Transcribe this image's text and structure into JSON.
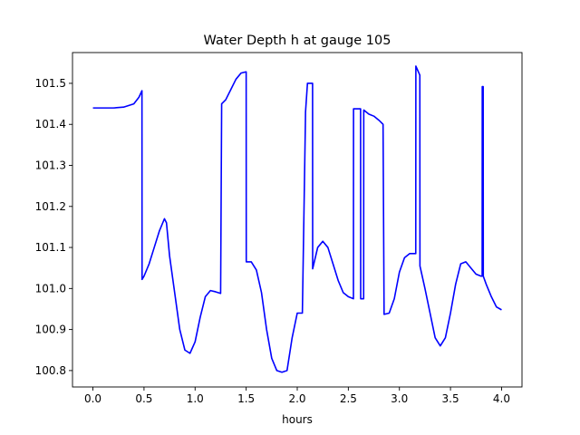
{
  "chart_data": {
    "type": "line",
    "title": "Water Depth h at gauge 105",
    "xlabel": "hours",
    "ylabel": "",
    "xlim": [
      -0.2,
      4.2
    ],
    "ylim": [
      100.76,
      101.575
    ],
    "x_ticks": [
      0.0,
      0.5,
      1.0,
      1.5,
      2.0,
      2.5,
      3.0,
      3.5,
      4.0
    ],
    "x_tick_labels": [
      "0.0",
      "0.5",
      "1.0",
      "1.5",
      "2.0",
      "2.5",
      "3.0",
      "3.5",
      "4.0"
    ],
    "y_ticks": [
      100.8,
      100.9,
      101.0,
      101.1,
      101.2,
      101.3,
      101.4,
      101.5
    ],
    "y_tick_labels": [
      "100.8",
      "100.9",
      "101.0",
      "101.1",
      "101.2",
      "101.3",
      "101.4",
      "101.5"
    ],
    "grid": false,
    "series": [
      {
        "color": "#0000ff",
        "x": [
          0.0,
          0.1,
          0.2,
          0.3,
          0.4,
          0.45,
          0.48,
          0.481,
          0.5,
          0.55,
          0.6,
          0.65,
          0.7,
          0.72,
          0.75,
          0.8,
          0.85,
          0.9,
          0.95,
          1.0,
          1.05,
          1.1,
          1.15,
          1.2,
          1.25,
          1.26,
          1.3,
          1.35,
          1.4,
          1.45,
          1.5,
          1.501,
          1.55,
          1.6,
          1.65,
          1.7,
          1.75,
          1.8,
          1.85,
          1.9,
          1.95,
          2.0,
          2.05,
          2.08,
          2.081,
          2.1,
          2.15,
          2.151,
          2.2,
          2.25,
          2.3,
          2.35,
          2.4,
          2.45,
          2.5,
          2.55,
          2.551,
          2.6,
          2.62,
          2.621,
          2.65,
          2.651,
          2.7,
          2.75,
          2.8,
          2.84,
          2.85,
          2.9,
          2.95,
          3.0,
          3.05,
          3.1,
          3.15,
          3.16,
          3.161,
          3.2,
          3.201,
          3.25,
          3.3,
          3.35,
          3.4,
          3.45,
          3.5,
          3.55,
          3.6,
          3.65,
          3.7,
          3.75,
          3.8,
          3.81,
          3.811,
          3.82,
          3.821,
          3.85,
          3.9,
          3.95,
          4.0
        ],
        "y": [
          101.44,
          101.44,
          101.44,
          101.442,
          101.45,
          101.466,
          101.482,
          101.022,
          101.03,
          101.06,
          101.1,
          101.14,
          101.17,
          101.16,
          101.08,
          100.99,
          100.9,
          100.85,
          100.842,
          100.87,
          100.93,
          100.98,
          100.995,
          100.992,
          100.988,
          101.45,
          101.46,
          101.485,
          101.51,
          101.525,
          101.528,
          101.065,
          101.065,
          101.045,
          100.99,
          100.9,
          100.83,
          100.8,
          100.796,
          100.8,
          100.88,
          100.94,
          100.94,
          101.41,
          101.43,
          101.5,
          101.5,
          101.048,
          101.1,
          101.115,
          101.1,
          101.06,
          101.02,
          100.99,
          100.98,
          100.975,
          101.438,
          101.438,
          101.438,
          100.975,
          100.975,
          101.435,
          101.425,
          101.42,
          101.41,
          101.4,
          100.937,
          100.94,
          100.975,
          101.04,
          101.075,
          101.085,
          101.085,
          101.085,
          101.542,
          101.52,
          101.055,
          101.0,
          100.94,
          100.88,
          100.86,
          100.88,
          100.94,
          101.01,
          101.06,
          101.065,
          101.05,
          101.035,
          101.03,
          101.03,
          101.492,
          101.492,
          101.03,
          101.01,
          100.98,
          100.955,
          100.948
        ]
      }
    ]
  }
}
